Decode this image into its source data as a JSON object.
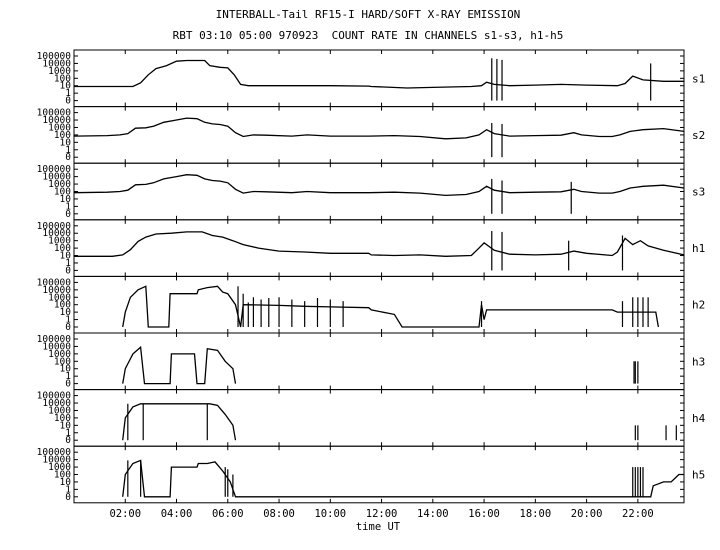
{
  "title": "INTERBALL-Tail RF15-I HARD/SOFT X-RAY EMISSION",
  "subtitle": "RBT 03:10 05:00 970923  COUNT RATE IN CHANNELS s1-s3, h1-h5",
  "chart_data": {
    "type": "line",
    "title": "INTERBALL-Tail RF15-I HARD/SOFT X-RAY EMISSION",
    "subtitle": "RBT 03:10 05:00 970923  COUNT RATE IN CHANNELS s1-s3, h1-h5",
    "xlabel": "time UT",
    "x_ticks": [
      "02:00",
      "04:00",
      "06:00",
      "08:00",
      "10:00",
      "12:00",
      "14:00",
      "16:00",
      "18:00",
      "20:00",
      "22:00"
    ],
    "x_tick_hours": [
      2,
      4,
      6,
      8,
      10,
      12,
      14,
      16,
      18,
      20,
      22
    ],
    "xlim_hours": [
      0,
      23.8
    ],
    "y_scale": "log",
    "y_ticks_labels": [
      "100000",
      "10000",
      "1000",
      "100",
      "10",
      "1",
      "0"
    ],
    "grid": false,
    "series": [
      {
        "name": "s1",
        "points": [
          [
            0,
            8
          ],
          [
            2.3,
            8
          ],
          [
            2.6,
            25
          ],
          [
            2.9,
            300
          ],
          [
            3.2,
            2000
          ],
          [
            3.6,
            5000
          ],
          [
            4.0,
            20000
          ],
          [
            4.4,
            25000
          ],
          [
            4.8,
            25000
          ],
          [
            5.1,
            25000
          ],
          [
            5.3,
            5000
          ],
          [
            5.7,
            3000
          ],
          [
            6.0,
            2500
          ],
          [
            6.25,
            300
          ],
          [
            6.5,
            15
          ],
          [
            6.8,
            10
          ],
          [
            8,
            10
          ],
          [
            10,
            10
          ],
          [
            11.5,
            9
          ],
          [
            11.6,
            8
          ],
          [
            13,
            5
          ],
          [
            14,
            6
          ],
          [
            15.5,
            8
          ],
          [
            15.9,
            10
          ],
          [
            16.1,
            30
          ],
          [
            16.4,
            15
          ],
          [
            17,
            10
          ],
          [
            18,
            12
          ],
          [
            19,
            15
          ],
          [
            20,
            12
          ],
          [
            21.2,
            10
          ],
          [
            21.5,
            20
          ],
          [
            21.8,
            200
          ],
          [
            22.2,
            60
          ],
          [
            23,
            40
          ],
          [
            23.8,
            40
          ]
        ],
        "spikes": [
          [
            16.3,
            50000
          ],
          [
            16.5,
            40000
          ],
          [
            16.7,
            30000
          ],
          [
            22.5,
            10000
          ]
        ]
      },
      {
        "name": "s2",
        "points": [
          [
            0,
            70
          ],
          [
            1.3,
            80
          ],
          [
            1.8,
            100
          ],
          [
            2.1,
            150
          ],
          [
            2.4,
            800
          ],
          [
            2.8,
            900
          ],
          [
            3.1,
            1500
          ],
          [
            3.5,
            5000
          ],
          [
            4.0,
            10000
          ],
          [
            4.4,
            18000
          ],
          [
            4.8,
            15000
          ],
          [
            5.1,
            5000
          ],
          [
            5.4,
            3000
          ],
          [
            5.7,
            2500
          ],
          [
            6.0,
            1500
          ],
          [
            6.3,
            200
          ],
          [
            6.6,
            60
          ],
          [
            7,
            100
          ],
          [
            7.5,
            90
          ],
          [
            8.5,
            70
          ],
          [
            9.1,
            100
          ],
          [
            10,
            70
          ],
          [
            11.5,
            70
          ],
          [
            12.5,
            80
          ],
          [
            13.5,
            60
          ],
          [
            14.5,
            30
          ],
          [
            15.3,
            40
          ],
          [
            15.8,
            100
          ],
          [
            16.1,
            500
          ],
          [
            16.4,
            150
          ],
          [
            17,
            70
          ],
          [
            18,
            80
          ],
          [
            19,
            90
          ],
          [
            19.5,
            200
          ],
          [
            19.8,
            100
          ],
          [
            20.5,
            60
          ],
          [
            21,
            60
          ],
          [
            21.3,
            100
          ],
          [
            21.7,
            300
          ],
          [
            22.2,
            500
          ],
          [
            23,
            700
          ],
          [
            23.8,
            300
          ]
        ],
        "spikes": [
          [
            16.3,
            4000
          ],
          [
            16.7,
            3000
          ]
        ]
      },
      {
        "name": "s3",
        "points": [
          [
            0,
            70
          ],
          [
            1.3,
            80
          ],
          [
            1.8,
            100
          ],
          [
            2.1,
            150
          ],
          [
            2.4,
            800
          ],
          [
            2.8,
            900
          ],
          [
            3.1,
            1500
          ],
          [
            3.5,
            5000
          ],
          [
            4.0,
            10000
          ],
          [
            4.4,
            18000
          ],
          [
            4.8,
            15000
          ],
          [
            5.1,
            5000
          ],
          [
            5.4,
            3000
          ],
          [
            5.7,
            2500
          ],
          [
            6.0,
            1500
          ],
          [
            6.3,
            200
          ],
          [
            6.6,
            60
          ],
          [
            7,
            100
          ],
          [
            7.5,
            90
          ],
          [
            8.5,
            70
          ],
          [
            9.1,
            100
          ],
          [
            10,
            70
          ],
          [
            11.5,
            70
          ],
          [
            12.5,
            80
          ],
          [
            13.5,
            60
          ],
          [
            14.5,
            30
          ],
          [
            15.3,
            40
          ],
          [
            15.8,
            100
          ],
          [
            16.1,
            500
          ],
          [
            16.4,
            150
          ],
          [
            17,
            70
          ],
          [
            18,
            80
          ],
          [
            19,
            90
          ],
          [
            19.5,
            200
          ],
          [
            19.8,
            100
          ],
          [
            20.5,
            60
          ],
          [
            21,
            60
          ],
          [
            21.3,
            100
          ],
          [
            21.7,
            300
          ],
          [
            22.2,
            500
          ],
          [
            23,
            700
          ],
          [
            23.8,
            300
          ]
        ],
        "spikes": [
          [
            16.3,
            5000
          ],
          [
            16.7,
            3000
          ],
          [
            19.4,
            2000
          ]
        ]
      },
      {
        "name": "h1",
        "points": [
          [
            0,
            8
          ],
          [
            1.5,
            8
          ],
          [
            1.9,
            12
          ],
          [
            2.2,
            60
          ],
          [
            2.5,
            800
          ],
          [
            2.8,
            3000
          ],
          [
            3.2,
            8000
          ],
          [
            3.8,
            10000
          ],
          [
            4.4,
            15000
          ],
          [
            5.0,
            15000
          ],
          [
            5.4,
            5000
          ],
          [
            5.8,
            3000
          ],
          [
            6.2,
            1000
          ],
          [
            6.6,
            300
          ],
          [
            7.2,
            100
          ],
          [
            8,
            40
          ],
          [
            9,
            30
          ],
          [
            10,
            20
          ],
          [
            11.5,
            20
          ],
          [
            11.6,
            12
          ],
          [
            12.5,
            10
          ],
          [
            13.5,
            12
          ],
          [
            14.5,
            8
          ],
          [
            15.5,
            10
          ],
          [
            15.8,
            100
          ],
          [
            16.0,
            500
          ],
          [
            16.4,
            50
          ],
          [
            17,
            15
          ],
          [
            18,
            12
          ],
          [
            19,
            15
          ],
          [
            19.5,
            40
          ],
          [
            20,
            20
          ],
          [
            21,
            10
          ],
          [
            21.2,
            30
          ],
          [
            21.5,
            2000
          ],
          [
            21.8,
            300
          ],
          [
            22.1,
            1000
          ],
          [
            22.4,
            200
          ],
          [
            23,
            50
          ],
          [
            23.8,
            12
          ]
        ],
        "spikes": [
          [
            16.3,
            20000
          ],
          [
            16.7,
            15000
          ],
          [
            19.3,
            1000
          ],
          [
            21.4,
            5000
          ]
        ]
      },
      {
        "name": "h2",
        "points": [
          [
            1.9,
            0
          ],
          [
            2.0,
            10
          ],
          [
            2.2,
            1000
          ],
          [
            2.5,
            10000
          ],
          [
            2.8,
            30000
          ],
          [
            2.9,
            0
          ],
          [
            3.7,
            0
          ],
          [
            3.75,
            3000
          ],
          [
            4.8,
            3000
          ],
          [
            4.85,
            10000
          ],
          [
            5.2,
            20000
          ],
          [
            5.6,
            30000
          ],
          [
            5.8,
            5000
          ],
          [
            6.0,
            3000
          ],
          [
            6.3,
            100
          ],
          [
            6.5,
            0
          ],
          [
            6.6,
            100
          ],
          [
            8,
            80
          ],
          [
            9,
            60
          ],
          [
            10,
            50
          ],
          [
            11.5,
            40
          ],
          [
            11.6,
            20
          ],
          [
            12.5,
            5
          ],
          [
            12.8,
            0
          ],
          [
            15.8,
            0
          ],
          [
            15.9,
            100
          ],
          [
            16.0,
            1
          ],
          [
            16.1,
            20
          ],
          [
            18,
            20
          ],
          [
            19,
            20
          ],
          [
            20,
            20
          ],
          [
            21,
            20
          ],
          [
            21.2,
            10
          ],
          [
            22.7,
            10
          ],
          [
            22.8,
            0
          ]
        ],
        "spikes": [
          [
            6.4,
            30000
          ],
          [
            6.6,
            3000
          ],
          [
            6.8,
            200
          ],
          [
            7.0,
            1000
          ],
          [
            7.3,
            500
          ],
          [
            7.6,
            800
          ],
          [
            8.0,
            1000
          ],
          [
            8.5,
            500
          ],
          [
            9.0,
            300
          ],
          [
            9.5,
            800
          ],
          [
            10.0,
            500
          ],
          [
            10.5,
            300
          ],
          [
            15.9,
            300
          ],
          [
            21.4,
            300
          ],
          [
            21.8,
            1000
          ],
          [
            22.0,
            1000
          ],
          [
            22.2,
            1000
          ],
          [
            22.4,
            1000
          ]
        ]
      },
      {
        "name": "h3",
        "points": [
          [
            1.9,
            0
          ],
          [
            2.0,
            10
          ],
          [
            2.3,
            1000
          ],
          [
            2.6,
            8000
          ],
          [
            2.75,
            0
          ],
          [
            3.75,
            0
          ],
          [
            3.8,
            1000
          ],
          [
            4.7,
            1000
          ],
          [
            4.8,
            0
          ],
          [
            5.1,
            0
          ],
          [
            5.2,
            5000
          ],
          [
            5.6,
            3000
          ],
          [
            5.9,
            100
          ],
          [
            6.2,
            10
          ],
          [
            6.3,
            0
          ]
        ],
        "spikes": [
          [
            21.85,
            100
          ],
          [
            21.9,
            100
          ],
          [
            22.0,
            100
          ]
        ]
      },
      {
        "name": "h4",
        "points": [
          [
            1.9,
            0
          ],
          [
            2.0,
            100
          ],
          [
            2.3,
            3000
          ],
          [
            2.6,
            8000
          ],
          [
            2.75,
            8000
          ],
          [
            4.0,
            8000
          ],
          [
            5.1,
            8000
          ],
          [
            5.3,
            8000
          ],
          [
            5.6,
            5000
          ],
          [
            5.9,
            300
          ],
          [
            6.2,
            10
          ],
          [
            6.3,
            0
          ]
        ],
        "spikes": [
          [
            2.1,
            8000
          ],
          [
            2.7,
            8000
          ],
          [
            5.2,
            8000
          ],
          [
            21.9,
            10
          ],
          [
            22.0,
            10
          ],
          [
            23.1,
            10
          ],
          [
            23.5,
            10
          ]
        ]
      },
      {
        "name": "h5",
        "points": [
          [
            1.9,
            0
          ],
          [
            2.0,
            100
          ],
          [
            2.3,
            3000
          ],
          [
            2.6,
            8000
          ],
          [
            2.75,
            0
          ],
          [
            3.75,
            0
          ],
          [
            3.8,
            1000
          ],
          [
            4.8,
            1000
          ],
          [
            4.85,
            3000
          ],
          [
            5.2,
            3000
          ],
          [
            5.5,
            5000
          ],
          [
            5.8,
            300
          ],
          [
            6.1,
            10
          ],
          [
            6.3,
            0
          ],
          [
            22.5,
            0
          ],
          [
            22.6,
            3
          ],
          [
            23.0,
            10
          ],
          [
            23.3,
            10
          ],
          [
            23.6,
            100
          ],
          [
            23.8,
            100
          ]
        ],
        "spikes": [
          [
            2.1,
            8000
          ],
          [
            2.6,
            8000
          ],
          [
            5.9,
            1000
          ],
          [
            6.0,
            500
          ],
          [
            6.2,
            100
          ],
          [
            21.8,
            1000
          ],
          [
            21.9,
            1000
          ],
          [
            22.0,
            1000
          ],
          [
            22.1,
            1000
          ],
          [
            22.2,
            1000
          ]
        ]
      }
    ]
  }
}
